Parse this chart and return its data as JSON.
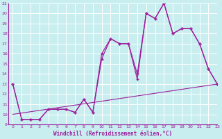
{
  "xlabel": "Windchill (Refroidissement éolien,°C)",
  "bg_color": "#c8eef0",
  "line_color": "#9b1f9b",
  "xlim": [
    -0.5,
    23
  ],
  "ylim": [
    9,
    21
  ],
  "yticks": [
    9,
    10,
    11,
    12,
    13,
    14,
    15,
    16,
    17,
    18,
    19,
    20,
    21
  ],
  "xticks": [
    0,
    1,
    2,
    3,
    4,
    5,
    6,
    7,
    8,
    9,
    10,
    11,
    12,
    13,
    14,
    15,
    16,
    17,
    18,
    19,
    20,
    21,
    22,
    23
  ],
  "series1_x": [
    0,
    1,
    2,
    3,
    4,
    5,
    6,
    7,
    8,
    9,
    10,
    11,
    12,
    13,
    14,
    15,
    16,
    17,
    18,
    19,
    20,
    21,
    22,
    23
  ],
  "series1_y": [
    13,
    9.5,
    9.5,
    9.5,
    10.5,
    10.5,
    10.5,
    10.2,
    11.5,
    10.2,
    16.0,
    17.5,
    17.0,
    17.0,
    13.5,
    20.0,
    19.5,
    21.0,
    18.0,
    18.5,
    18.5,
    17.0,
    14.5,
    13.0
  ],
  "series2_x": [
    0,
    1,
    2,
    3,
    4,
    5,
    6,
    7,
    8,
    9,
    10,
    11,
    12,
    13,
    14,
    15,
    16,
    17,
    18,
    19,
    20,
    21,
    22,
    23
  ],
  "series2_y": [
    13,
    9.5,
    9.5,
    9.5,
    10.5,
    10.5,
    10.5,
    10.2,
    11.5,
    10.2,
    15.5,
    17.5,
    17.0,
    17.0,
    14.0,
    20.0,
    19.5,
    21.0,
    18.0,
    18.5,
    18.5,
    17.0,
    14.5,
    13.0
  ],
  "series3_x": [
    0,
    23
  ],
  "series3_y": [
    10.0,
    13.0
  ],
  "grid_color": "#ffffff",
  "marker": "+"
}
